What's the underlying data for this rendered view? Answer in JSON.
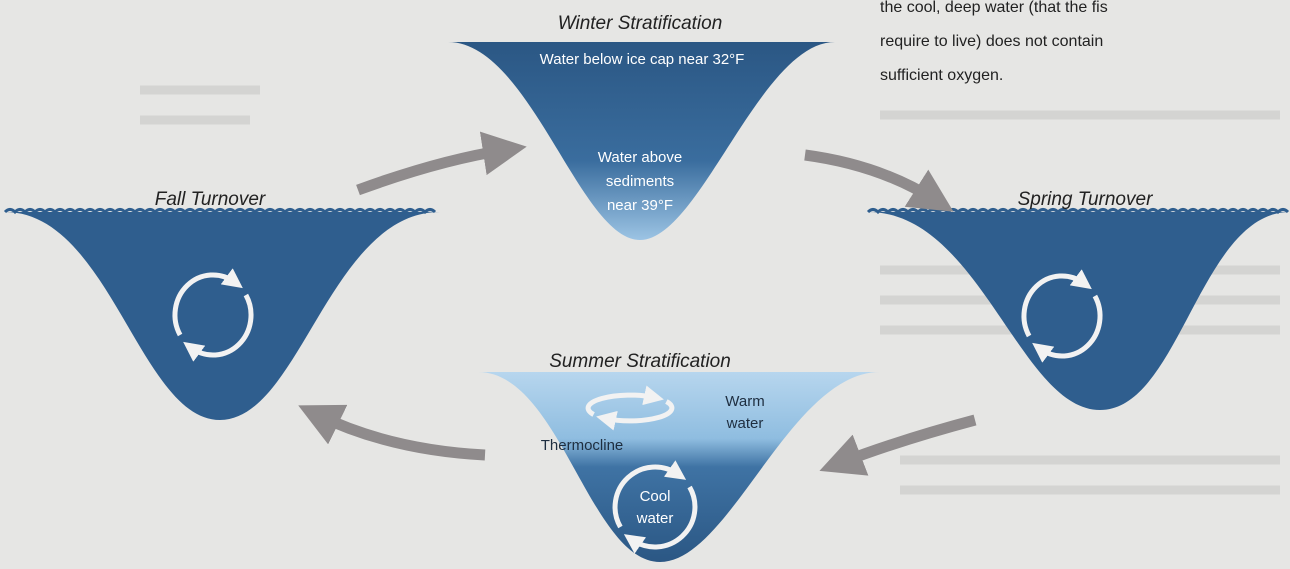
{
  "intro_text": {
    "lines": [
      "the cool, deep water (that the fis",
      "require to live) does not contain",
      "sufficient oxygen."
    ]
  },
  "winter": {
    "title": "Winter Stratification",
    "top_label": "Water below ice cap near 32°F",
    "bottom_label": [
      "Water above",
      "sediments",
      "near 39°F"
    ]
  },
  "fall": {
    "title": "Fall Turnover"
  },
  "spring": {
    "title": "Spring Turnover"
  },
  "summer": {
    "title": "Summer Stratification",
    "warm_label": [
      "Warm",
      "water"
    ],
    "thermocline": "Thermocline",
    "cool_label": [
      "Cool",
      "water"
    ]
  }
}
